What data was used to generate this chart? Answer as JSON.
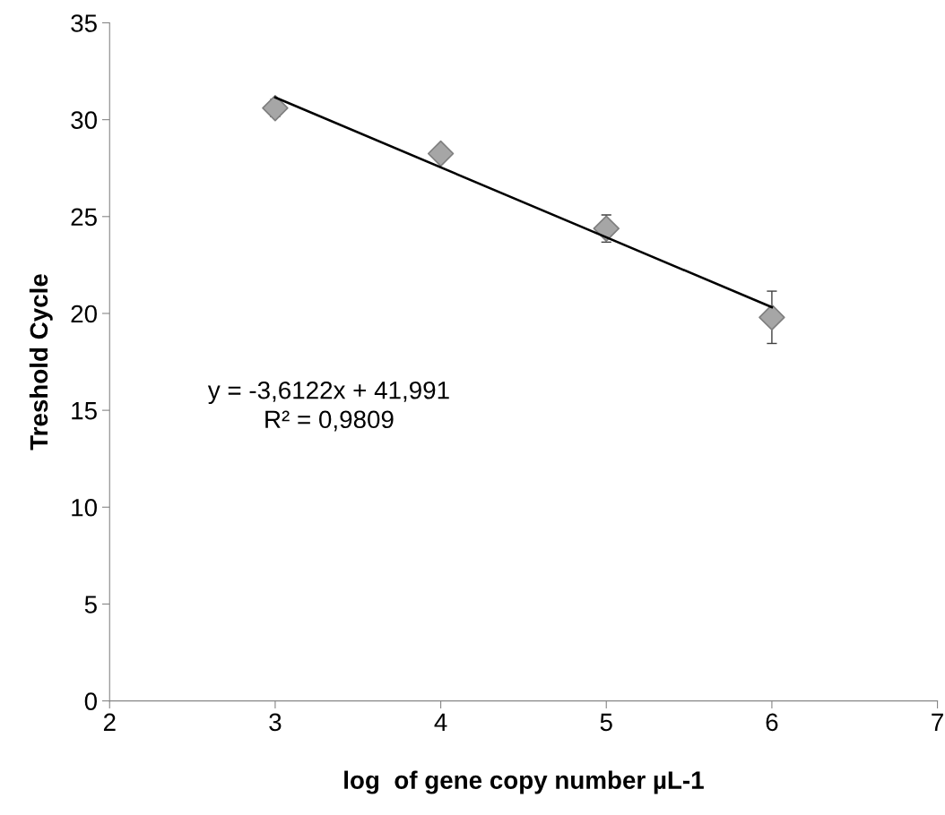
{
  "chart_data": {
    "type": "scatter",
    "xlabel": "log  of gene copy number µL-1",
    "ylabel": "Treshold Cycle",
    "xlim": [
      2,
      7
    ],
    "xticks": [
      2,
      3,
      4,
      5,
      6,
      7
    ],
    "ylim": [
      0,
      35
    ],
    "yticks": [
      0,
      5,
      10,
      15,
      20,
      25,
      30,
      35
    ],
    "grid": false,
    "series": [
      {
        "marker": "diamond",
        "x": [
          3,
          4,
          5,
          6
        ],
        "values": [
          30.6,
          28.25,
          24.38,
          19.8
        ],
        "errors": [
          0.45,
          null,
          0.7,
          1.35
        ],
        "color": "#a6a6a6"
      },
      {
        "type": "line",
        "x": [
          3,
          6
        ],
        "values": [
          31.15,
          20.32
        ],
        "color": "#000000"
      }
    ],
    "annotations": [
      "y = -3,6122x + 41,991",
      "R² = 0,9809"
    ]
  }
}
